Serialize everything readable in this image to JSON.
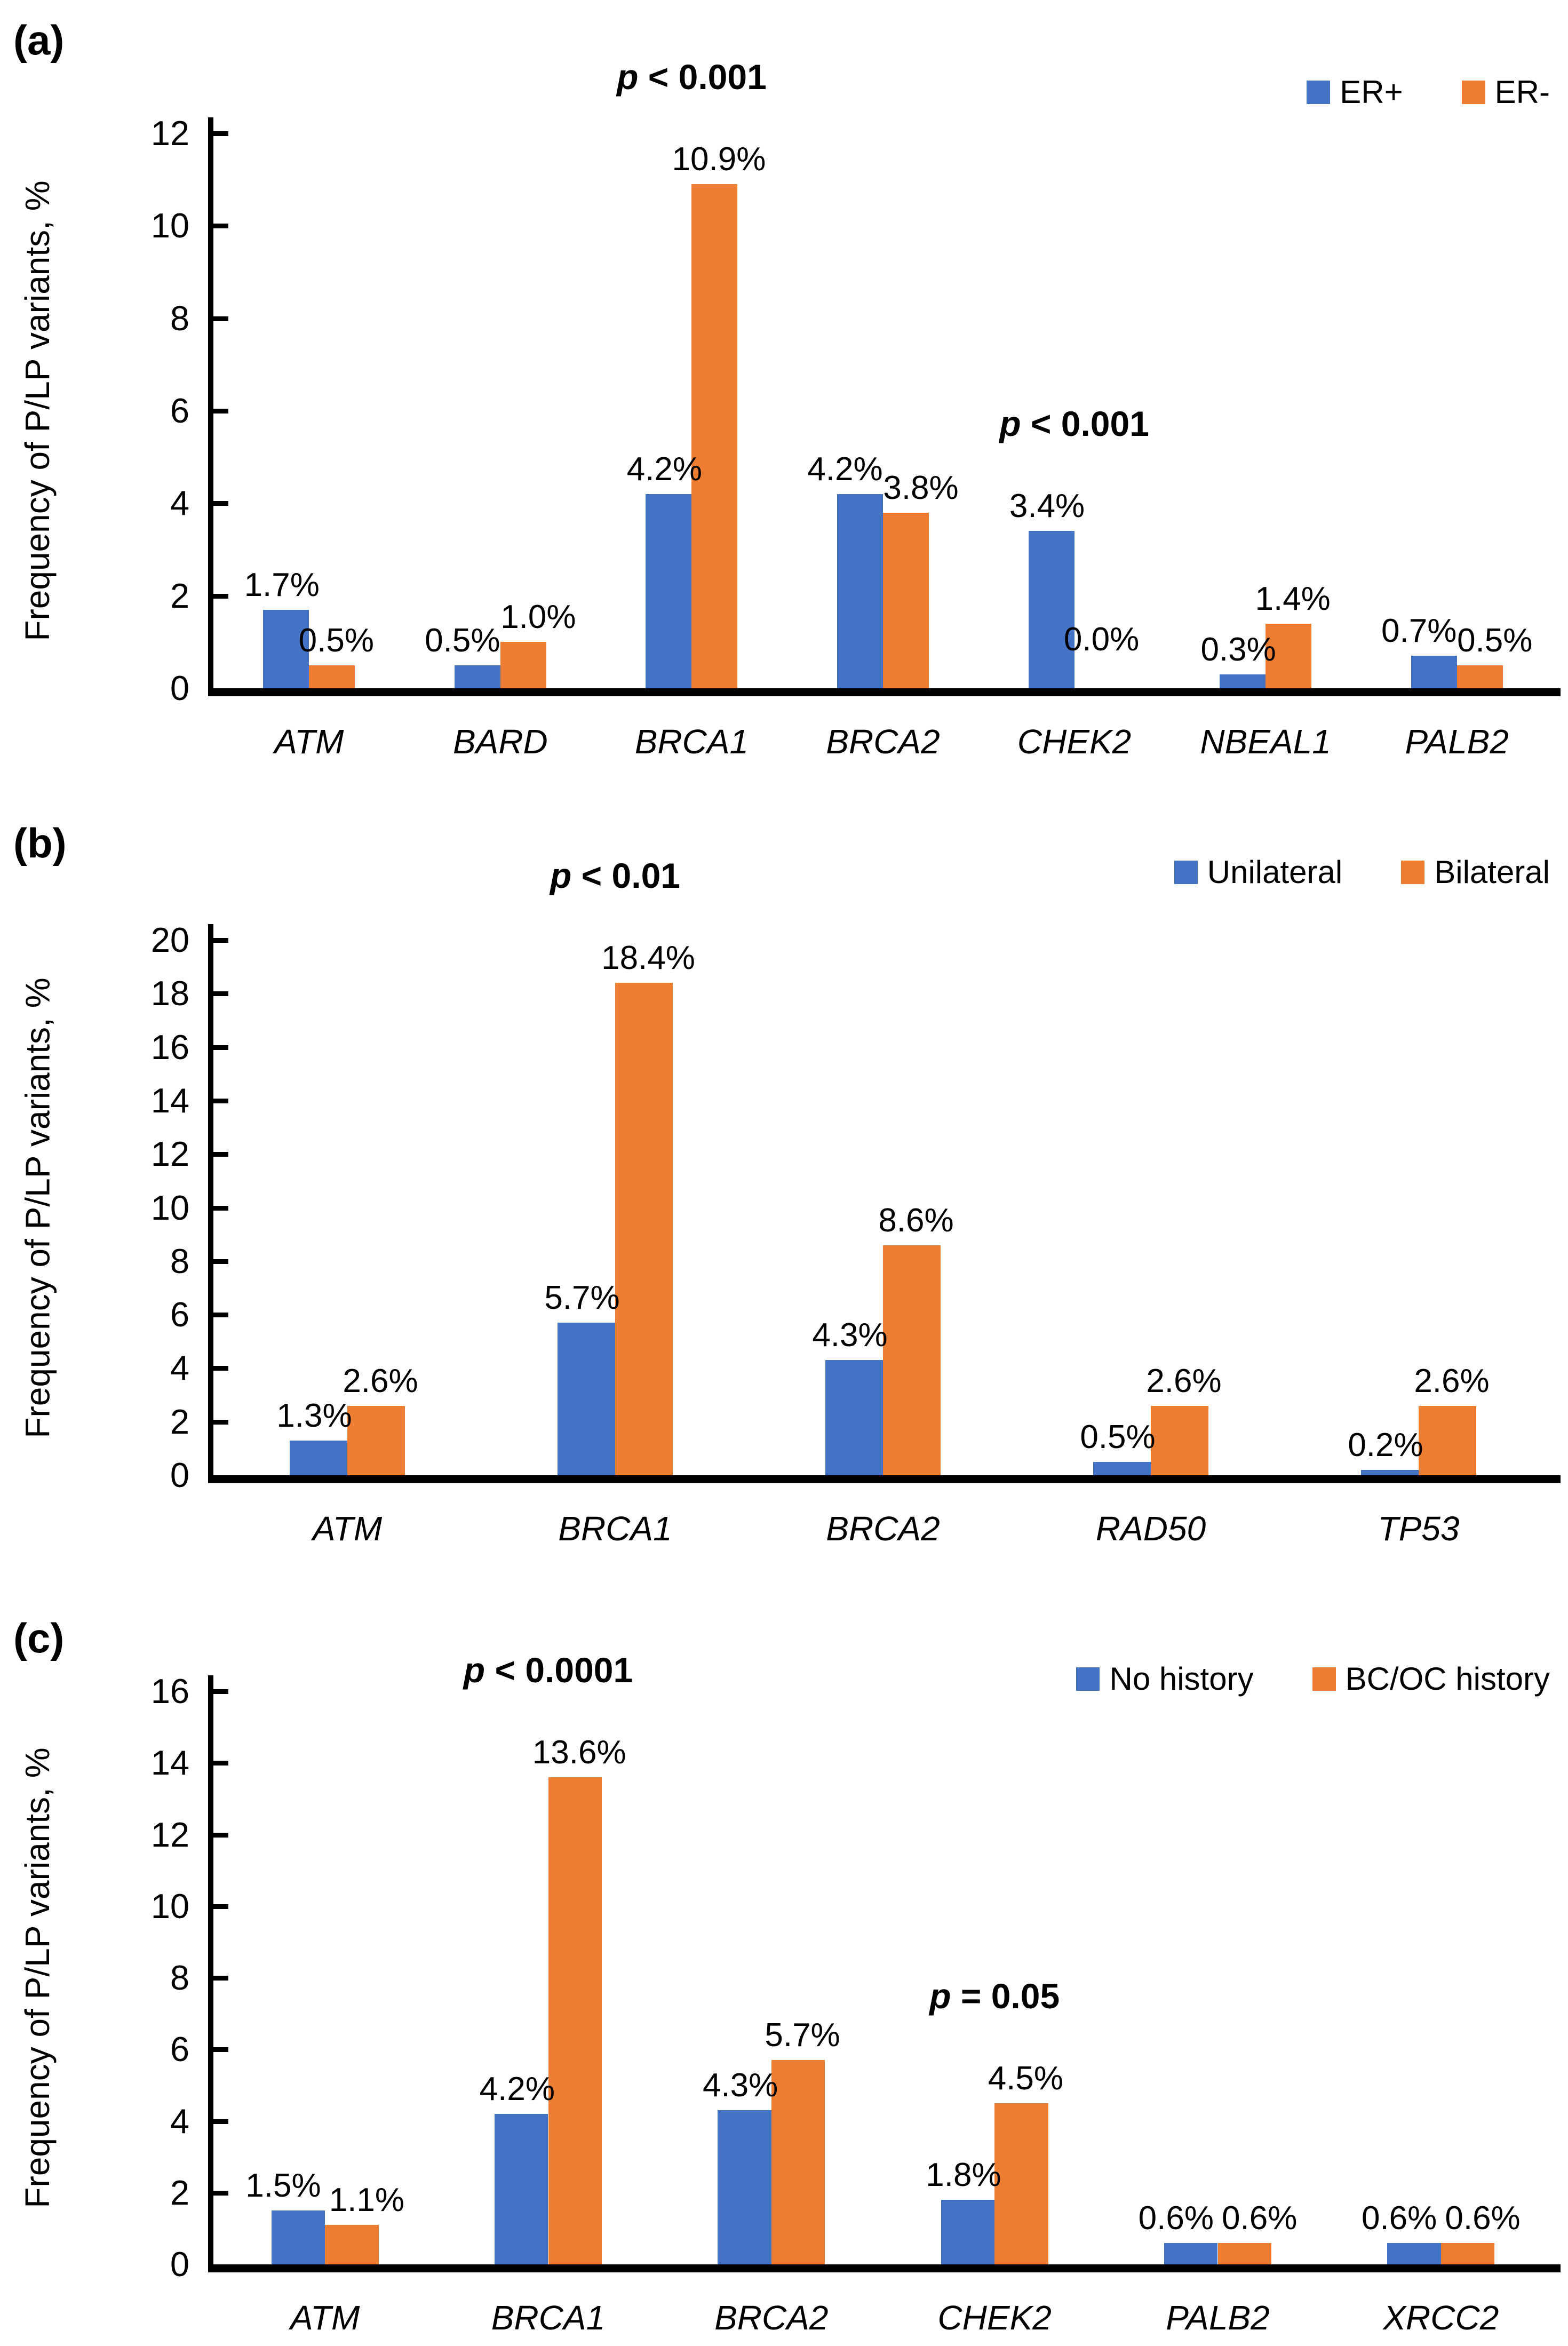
{
  "figure": {
    "colors": {
      "axis": "#000000",
      "text": "#000000",
      "background": "#ffffff"
    }
  },
  "chart_data": [
    {
      "type": "bar",
      "panel_label": "(a)",
      "ylabel": "Frequency of P/LP variants, %",
      "ylim": [
        0,
        12
      ],
      "ytick_step": 2,
      "grid": false,
      "legend_position": "top-right",
      "categories": [
        "ATM",
        "BARD",
        "BRCA1",
        "BRCA2",
        "CHEK2",
        "NBEAL1",
        "PALB2"
      ],
      "series": [
        {
          "name": "ER+",
          "color": "#4472C4",
          "values": [
            1.7,
            0.5,
            4.2,
            4.2,
            3.4,
            0.3,
            0.7
          ],
          "labels": [
            "1.7%",
            "0.5%",
            "4.2%",
            "4.2%",
            "3.4%",
            "0.3%",
            "0.7%"
          ]
        },
        {
          "name": "ER-",
          "color": "#ED7D31",
          "values": [
            0.5,
            1.0,
            10.9,
            3.8,
            0.0,
            1.4,
            0.5
          ],
          "labels": [
            "0.5%",
            "1.0%",
            "10.9%",
            "3.8%",
            "0.0%",
            "1.4%",
            "0.5%"
          ]
        }
      ],
      "annotations": [
        {
          "text": "p < 0.001",
          "category_index": 2
        },
        {
          "text": "p < 0.001",
          "category_index": 4
        }
      ]
    },
    {
      "type": "bar",
      "panel_label": "(b)",
      "ylabel": "Frequency of P/LP variants, %",
      "ylim": [
        0,
        20
      ],
      "ytick_step": 2,
      "grid": false,
      "legend_position": "top-right",
      "categories": [
        "ATM",
        "BRCA1",
        "BRCA2",
        "RAD50",
        "TP53"
      ],
      "series": [
        {
          "name": "Unilateral",
          "color": "#4472C4",
          "values": [
            1.3,
            5.7,
            4.3,
            0.5,
            0.2
          ],
          "labels": [
            "1.3%",
            "5.7%",
            "4.3%",
            "0.5%",
            "0.2%"
          ]
        },
        {
          "name": "Bilateral",
          "color": "#ED7D31",
          "values": [
            2.6,
            18.4,
            8.6,
            2.6,
            2.6
          ],
          "labels": [
            "2.6%",
            "18.4%",
            "8.6%",
            "2.6%",
            "2.6%"
          ]
        }
      ],
      "annotations": [
        {
          "text": "p < 0.01",
          "category_index": 1
        }
      ]
    },
    {
      "type": "bar",
      "panel_label": "(c)",
      "ylabel": "Frequency of P/LP variants, %",
      "ylim": [
        0,
        16
      ],
      "ytick_step": 2,
      "grid": false,
      "legend_position": "top-right",
      "categories": [
        "ATM",
        "BRCA1",
        "BRCA2",
        "CHEK2",
        "PALB2",
        "XRCC2"
      ],
      "series": [
        {
          "name": "No history",
          "color": "#4472C4",
          "values": [
            1.5,
            4.2,
            4.3,
            1.8,
            0.6,
            0.6
          ],
          "labels": [
            "1.5%",
            "4.2%",
            "4.3%",
            "1.8%",
            "0.6%",
            "0.6%"
          ]
        },
        {
          "name": "BC/OC history",
          "color": "#ED7D31",
          "values": [
            1.1,
            13.6,
            5.7,
            4.5,
            0.6,
            0.6
          ],
          "labels": [
            "1.1%",
            "13.6%",
            "5.7%",
            "4.5%",
            "0.6%",
            "0.6%"
          ]
        }
      ],
      "annotations": [
        {
          "text": "p < 0.0001",
          "category_index": 1
        },
        {
          "text": "p = 0.05",
          "category_index": 3
        }
      ]
    }
  ]
}
